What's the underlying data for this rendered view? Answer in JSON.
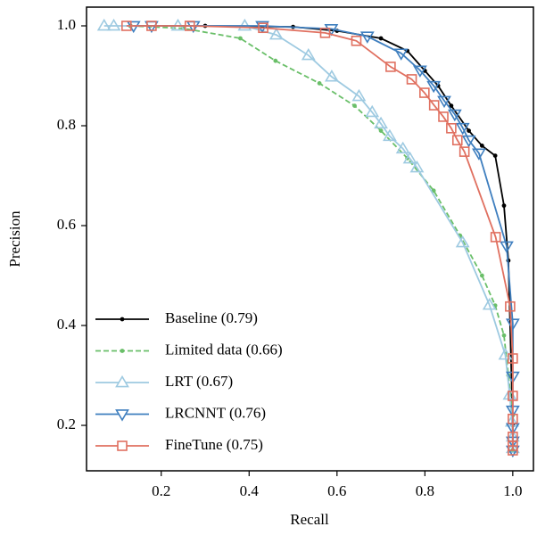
{
  "chart_data": {
    "type": "line",
    "x_label": "Recall",
    "y_label": "Precision",
    "xlim": [
      0.03,
      1.047
    ],
    "ylim": [
      0.109,
      1.0375
    ],
    "xticks": [
      0.2,
      0.4,
      0.6,
      0.8,
      {
        "value": 1,
        "label": "1.0"
      }
    ],
    "yticks": [
      0.2,
      0.4,
      0.6,
      0.8,
      {
        "value": 1,
        "label": "1.0"
      }
    ],
    "grid": false,
    "legend": "lower left",
    "series": [
      {
        "name": "Baseline (0.79)",
        "color": "#000000",
        "linestyle": "solid",
        "marker": "dot",
        "x": [
          0.13,
          0.3,
          0.5,
          0.6,
          0.7,
          0.76,
          0.8,
          0.83,
          0.86,
          0.9,
          0.93,
          0.96,
          0.98,
          0.99,
          1.0,
          1.0
        ],
        "values": [
          1.0,
          1.0,
          0.998,
          0.99,
          0.975,
          0.95,
          0.91,
          0.88,
          0.84,
          0.79,
          0.76,
          0.74,
          0.64,
          0.53,
          0.2,
          0.15
        ]
      },
      {
        "name": "Limited data (0.66)",
        "color": "#6abf69",
        "linestyle": "dashed",
        "marker": "dot",
        "x": [
          0.13,
          0.25,
          0.38,
          0.46,
          0.56,
          0.64,
          0.7,
          0.76,
          0.82,
          0.88,
          0.93,
          0.96,
          0.98,
          0.99,
          1.0,
          1.0
        ],
        "values": [
          1.0,
          0.995,
          0.975,
          0.93,
          0.885,
          0.84,
          0.79,
          0.735,
          0.67,
          0.58,
          0.5,
          0.44,
          0.38,
          0.3,
          0.22,
          0.15
        ]
      },
      {
        "name": "LRT (0.67)",
        "color": "#9ecae1",
        "linestyle": "solid",
        "marker": "triangle-up",
        "x": [
          0.07,
          0.092,
          0.238,
          0.39,
          0.462,
          0.535,
          0.588,
          0.65,
          0.68,
          0.7,
          0.72,
          0.75,
          0.766,
          0.782,
          0.886,
          0.947,
          0.983,
          0.993,
          0.998,
          1.0,
          1.0
        ],
        "values": [
          1.0,
          1.0,
          1.0,
          1.0,
          0.982,
          0.941,
          0.898,
          0.859,
          0.827,
          0.804,
          0.779,
          0.754,
          0.734,
          0.716,
          0.566,
          0.441,
          0.341,
          0.261,
          0.207,
          0.177,
          0.154
        ]
      },
      {
        "name": "LRCNNT (0.76)",
        "color": "#3f7fbf",
        "linestyle": "solid",
        "marker": "triangle-down",
        "x": [
          0.137,
          0.178,
          0.273,
          0.43,
          0.587,
          0.669,
          0.746,
          0.789,
          0.82,
          0.844,
          0.868,
          0.886,
          0.9,
          0.923,
          0.986,
          1.0,
          1.0,
          1.0,
          1.0,
          1.0,
          1.0
        ],
        "values": [
          1.0,
          1.0,
          1.0,
          1.0,
          0.994,
          0.979,
          0.945,
          0.911,
          0.88,
          0.85,
          0.823,
          0.796,
          0.771,
          0.745,
          0.559,
          0.404,
          0.298,
          0.23,
          0.195,
          0.168,
          0.15
        ]
      },
      {
        "name": "FineTune (0.75)",
        "color": "#e07060",
        "linestyle": "solid",
        "marker": "square",
        "x": [
          0.121,
          0.178,
          0.265,
          0.432,
          0.573,
          0.644,
          0.722,
          0.77,
          0.799,
          0.821,
          0.842,
          0.86,
          0.874,
          0.89,
          0.961,
          0.994,
          1.0,
          1.0,
          1.0,
          1.0,
          1.0,
          1.0
        ],
        "values": [
          1.0,
          1.0,
          1.0,
          0.996,
          0.986,
          0.97,
          0.918,
          0.893,
          0.866,
          0.841,
          0.818,
          0.795,
          0.771,
          0.748,
          0.577,
          0.438,
          0.334,
          0.259,
          0.213,
          0.177,
          0.159,
          0.15
        ]
      }
    ]
  }
}
